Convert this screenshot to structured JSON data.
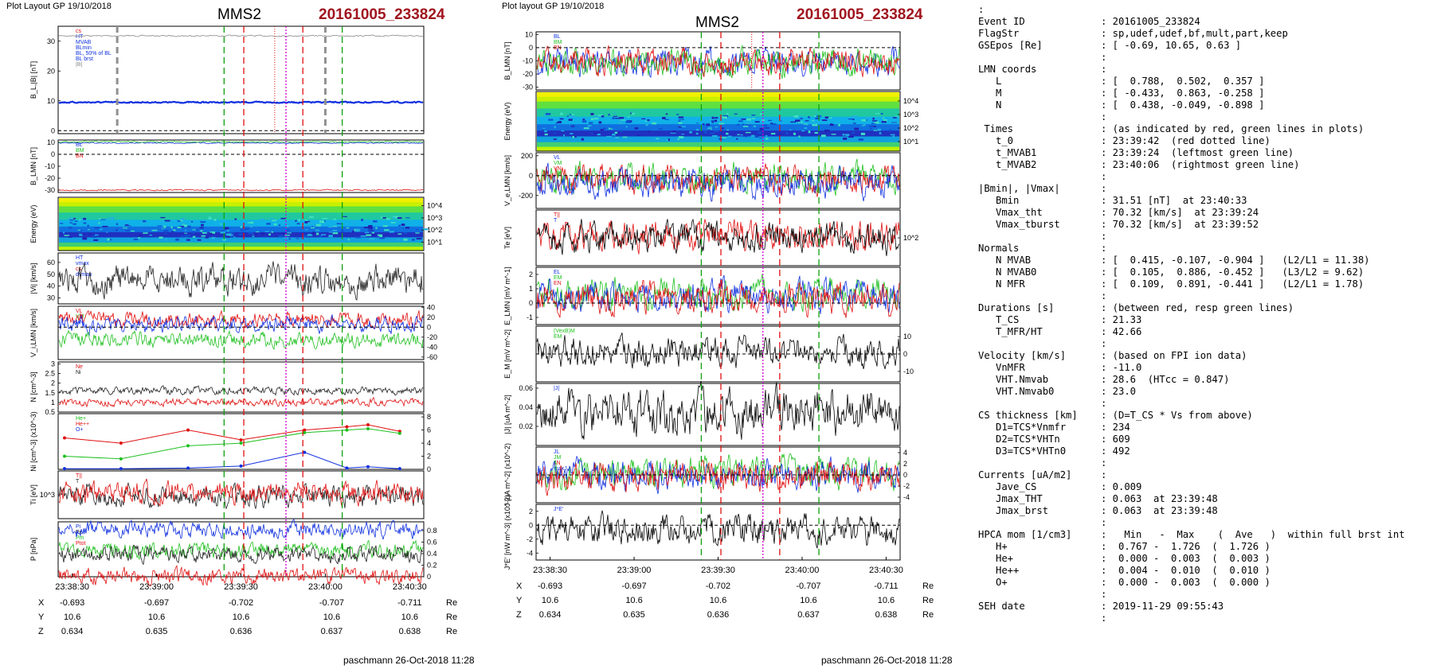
{
  "left": {
    "header": "Plot Layout GP 19/10/2018",
    "title": "MMS2",
    "event": "20161005_233824",
    "footer": "paschmann 26-Oct-2018 11:28",
    "time_ticks": [
      "23:38:30",
      "23:39:00",
      "23:39:30",
      "23:40:00",
      "23:40:30"
    ],
    "pos_rows": [
      {
        "label": "X",
        "vals": [
          "-0.693",
          "-0.697",
          "-0.702",
          "-0.707",
          "-0.711"
        ],
        "unit": "Re"
      },
      {
        "label": "Y",
        "vals": [
          "10.6",
          "10.6",
          "10.6",
          "10.6",
          "10.6"
        ],
        "unit": "Re"
      },
      {
        "label": "Z",
        "vals": [
          "0.634",
          "0.635",
          "0.636",
          "0.637",
          "0.638"
        ],
        "unit": "Re"
      }
    ]
  },
  "mid": {
    "header": "Plot layout GP 19/10/2018",
    "title": "MMS2",
    "event": "20161005_233824",
    "footer": "paschmann 26-Oct-2018 11:28",
    "time_ticks": [
      "23:38:30",
      "23:39:00",
      "23:39:30",
      "23:40:00",
      "23:40:30"
    ],
    "pos_rows": [
      {
        "label": "X",
        "vals": [
          "-0.693",
          "-0.697",
          "-0.702",
          "-0.707",
          "-0.711"
        ],
        "unit": "Re"
      },
      {
        "label": "Y",
        "vals": [
          "10.6",
          "10.6",
          "10.6",
          "10.6",
          "10.6"
        ],
        "unit": "Re"
      },
      {
        "label": "Z",
        "vals": [
          "0.634",
          "0.635",
          "0.636",
          "0.637",
          "0.638"
        ],
        "unit": "Re"
      }
    ]
  },
  "info_lines": [
    [
      ":",
      ""
    ],
    [
      "Event ID",
      ": 20161005_233824"
    ],
    [
      "FlagStr",
      ": sp,udef,udef,bf,mult,part,keep"
    ],
    [
      "GSEpos [Re]",
      ": [ -0.69, 10.65, 0.63 ]"
    ],
    [
      "",
      ":"
    ],
    [
      "LMN coords",
      ":"
    ],
    [
      "   L",
      ": [  0.788,  0.502,  0.357 ]"
    ],
    [
      "   M",
      ": [ -0.433,  0.863, -0.258 ]"
    ],
    [
      "   N",
      ": [  0.438, -0.049, -0.898 ]"
    ],
    [
      "",
      ":"
    ],
    [
      " Times",
      ": (as indicated by red, green lines in plots)"
    ],
    [
      "   t_0",
      ": 23:39:42  (red dotted line)"
    ],
    [
      "   t_MVAB1",
      ": 23:39:24  (leftmost green line)"
    ],
    [
      "   t_MVAB2",
      ": 23:40:06  (rightmost green line)"
    ],
    [
      "",
      ":"
    ],
    [
      "|Bmin|, |Vmax|",
      ":"
    ],
    [
      "   Bmin",
      ": 31.51 [nT]  at 23:40:33"
    ],
    [
      "   Vmax_tht",
      ": 70.32 [km/s]  at 23:39:24"
    ],
    [
      "   Vmax_tburst",
      ": 70.32 [km/s]  at 23:39:52"
    ],
    [
      "",
      ":"
    ],
    [
      "Normals",
      ":"
    ],
    [
      "   N MVAB",
      ": [  0.415, -0.107, -0.904 ]   (L2/L1 = 11.38)"
    ],
    [
      "   N MVAB0",
      ": [  0.105,  0.886, -0.452 ]   (L3/L2 = 9.62)"
    ],
    [
      "   N MFR",
      ": [  0.109,  0.891, -0.441 ]   (L2/L1 = 1.78)"
    ],
    [
      "",
      ":"
    ],
    [
      "Durations [s]",
      ": (between red, resp green lines)"
    ],
    [
      "   T_CS",
      ": 21.33"
    ],
    [
      "   T_MFR/HT",
      ": 42.66"
    ],
    [
      "",
      ":"
    ],
    [
      "Velocity [km/s]",
      ": (based on FPI ion data)"
    ],
    [
      "   VnMFR",
      ": -11.0"
    ],
    [
      "   VHT.Nmvab",
      ": 28.6  (HTcc = 0.847)"
    ],
    [
      "   VHT.Nmvab0",
      ": 23.0"
    ],
    [
      "",
      ":"
    ],
    [
      "CS thickness [km]",
      ": (D=T_CS * Vs from above)"
    ],
    [
      "   D1=TCS*Vnmfr",
      ": 234"
    ],
    [
      "   D2=TCS*VHTn",
      ": 609"
    ],
    [
      "   D3=TCS*VHTn0",
      ": 492"
    ],
    [
      "",
      ":"
    ],
    [
      "Currents [uA/m2]",
      ":"
    ],
    [
      "   Jave_CS",
      ": 0.009"
    ],
    [
      "   Jmax_THT",
      ": 0.063  at 23:39:48"
    ],
    [
      "   Jmax_brst",
      ": 0.063  at 23:39:48"
    ],
    [
      "",
      ":"
    ],
    [
      "HPCA mom [1/cm3]",
      ":   Min   -  Max    (  Ave   )  within full brst int"
    ],
    [
      "   H+",
      ":  0.767 -  1.726  (  1.726 )"
    ],
    [
      "   He+",
      ":  0.000 -  0.003  (  0.003 )"
    ],
    [
      "   He++",
      ":  0.004 -  0.010  (  0.010 )"
    ],
    [
      "   O+",
      ":  0.000 -  0.003  (  0.000 )"
    ],
    [
      "",
      ":"
    ],
    [
      "SEH date",
      ": 2019-11-29 09:55:43"
    ],
    [
      "",
      ":"
    ]
  ],
  "chart_data": [
    {
      "type": "line",
      "page": "left",
      "x_range": [
        "23:38:25",
        "23:40:35"
      ],
      "x_ticks": [
        "23:38:30",
        "23:39:00",
        "23:39:30",
        "23:40:00",
        "23:40:30"
      ],
      "event_lines": {
        "red_dashed": [
          "23:39:31",
          "23:39:52"
        ],
        "red_dotted": "23:39:42",
        "green_dashed": [
          "23:39:24",
          "23:40:06"
        ],
        "magenta_dotted": "23:39:46",
        "gray_dashed": [
          "23:38:46",
          "23:40:00"
        ]
      },
      "panels": [
        {
          "ylabel": "B_L,|B| [nT]",
          "ticks": [
            30,
            20,
            10,
            0
          ],
          "ylim": [
            -1,
            35
          ],
          "legend": [
            "cs",
            "HT",
            "MVAB",
            "BLmin",
            "BL, 50% of BL",
            "BL brst",
            "|B|"
          ],
          "series": [
            {
              "name": "|B|",
              "color": "#888888",
              "approx": 31.8
            },
            {
              "name": "BL",
              "color": "#1030e0",
              "approx": 9.5
            }
          ]
        },
        {
          "ylabel": "B_LMN [nT]",
          "ticks": [
            10,
            0,
            -10,
            -20,
            -30
          ],
          "ylim": [
            -32,
            12
          ],
          "legend": [
            "BL",
            "BM",
            "BN"
          ],
          "series": [
            {
              "name": "BL",
              "color": "#1030e0",
              "approx": 9.5
            },
            {
              "name": "BM",
              "color": "#20c020",
              "approx": 10.5
            },
            {
              "name": "BN",
              "color": "#e01010",
              "approx": -30
            }
          ]
        },
        {
          "ylabel": "Energy (eV)",
          "type": "heatmap",
          "ticks": [
            "10^4",
            "10^3",
            "10^2",
            "10^1"
          ]
        },
        {
          "ylabel": "|Vi| [km/s]",
          "ticks": [
            60,
            50,
            40,
            30
          ],
          "ylim": [
            25,
            68
          ],
          "legend": [
            "HT",
            "vmax",
            "cs",
            "dvmax"
          ],
          "series": [
            {
              "name": "|Vi|",
              "color": "#202020",
              "approx": 45
            }
          ]
        },
        {
          "ylabel": "V_i,LMN [km/s]",
          "ticks": [
            40,
            20,
            0,
            -20,
            -40,
            -60
          ],
          "ylim": [
            -65,
            42
          ],
          "legend": [
            "VL",
            "VM",
            "VN"
          ],
          "series": [
            {
              "name": "VL",
              "color": "#e01010",
              "approx": 15
            },
            {
              "name": "VN",
              "color": "#1030e0",
              "approx": 5
            },
            {
              "name": "VM",
              "color": "#20c020",
              "approx": -25
            }
          ]
        },
        {
          "ylabel": "N [cm^-3]",
          "ticks": [
            3.0,
            2.5,
            2.0,
            1.5,
            1.0,
            0.5
          ],
          "ylim": [
            0.5,
            3.1
          ],
          "legend": [
            "Ne",
            "Ni"
          ],
          "series": [
            {
              "name": "Ni",
              "color": "#202020",
              "approx": 1.6
            },
            {
              "name": "Ne",
              "color": "#e01010",
              "approx": 1.0
            }
          ]
        },
        {
          "ylabel": "Ni [cm^-3] (x10^-3)",
          "ticks": [
            8,
            6,
            4,
            2,
            0
          ],
          "ylim": [
            0,
            8.5
          ],
          "legend": [
            "He+",
            "He++",
            "O+"
          ],
          "series": [
            {
              "name": "He++",
              "color": "#e01010",
              "points": [
                [
                  0,
                  4.8
                ],
                [
                  0.16,
                  4.0
                ],
                [
                  0.35,
                  6.0
                ],
                [
                  0.5,
                  4.5
                ],
                [
                  0.68,
                  6.0
                ],
                [
                  0.8,
                  6.5
                ],
                [
                  0.86,
                  6.8
                ],
                [
                  0.95,
                  5.8
                ]
              ]
            },
            {
              "name": "He+",
              "color": "#20c020",
              "points": [
                [
                  0,
                  2.0
                ],
                [
                  0.16,
                  1.6
                ],
                [
                  0.35,
                  3.6
                ],
                [
                  0.5,
                  4.0
                ],
                [
                  0.68,
                  5.6
                ],
                [
                  0.8,
                  6.0
                ],
                [
                  0.86,
                  6.2
                ],
                [
                  0.95,
                  5.5
                ]
              ]
            },
            {
              "name": "O+",
              "color": "#1030e0",
              "points": [
                [
                  0,
                  0.1
                ],
                [
                  0.16,
                  0.1
                ],
                [
                  0.35,
                  0.2
                ],
                [
                  0.5,
                  0.5
                ],
                [
                  0.68,
                  2.6
                ],
                [
                  0.8,
                  0.2
                ],
                [
                  0.86,
                  0.4
                ],
                [
                  0.95,
                  0.1
                ]
              ]
            }
          ]
        },
        {
          "ylabel": "Ti [eV]",
          "ticks": [
            "10^3"
          ],
          "legend": [
            "T||",
            "T"
          ],
          "series": [
            {
              "name": "T",
              "color": "#202020"
            },
            {
              "name": "T||",
              "color": "#e01010"
            }
          ]
        },
        {
          "ylabel": "P [nPa]",
          "ticks": [
            0.8,
            0.6,
            0.4,
            0.2,
            0.0
          ],
          "ylim": [
            0,
            0.95
          ],
          "legend": [
            "Pi",
            "Pe",
            "Pm",
            "Ptot"
          ],
          "series": [
            {
              "name": "Pi",
              "color": "#1030e0",
              "approx": 0.82
            },
            {
              "name": "Pm",
              "color": "#20c020",
              "approx": 0.45
            },
            {
              "name": "Pe",
              "color": "#202020",
              "approx": 0.38
            },
            {
              "name": "Ptot",
              "color": "#e01010",
              "approx": 0.02
            }
          ]
        }
      ]
    },
    {
      "type": "line",
      "page": "mid",
      "x_range": [
        "23:38:25",
        "23:40:35"
      ],
      "x_ticks": [
        "23:38:30",
        "23:39:00",
        "23:39:30",
        "23:40:00",
        "23:40:30"
      ],
      "event_lines": {
        "red_dashed": [
          "23:39:31",
          "23:39:52"
        ],
        "red_dotted": "23:39:42",
        "green_dashed": [
          "23:39:24",
          "23:40:06"
        ],
        "magenta_dotted": "23:39:46"
      },
      "panels": [
        {
          "ylabel": "B_LMN [nT]",
          "ticks": [
            10,
            0,
            -10,
            -20,
            -30
          ],
          "ylim": [
            -32,
            12
          ],
          "legend": [
            "BL",
            "BM",
            "BN"
          ],
          "series": [
            {
              "name": "BL",
              "color": "#1030e0"
            },
            {
              "name": "BM",
              "color": "#20c020"
            },
            {
              "name": "BN",
              "color": "#e01010"
            }
          ]
        },
        {
          "ylabel": "Energy (eV)",
          "type": "heatmap",
          "ticks": [
            "10^4",
            "10^3",
            "10^2",
            "10^1"
          ]
        },
        {
          "ylabel": "V_e,LMN [km/s]",
          "ticks": [
            200,
            0,
            -200
          ],
          "ylim": [
            -330,
            230
          ],
          "legend": [
            "VL",
            "VM",
            "VN"
          ]
        },
        {
          "ylabel": "Te [eV]",
          "ticks": [
            "10^2"
          ],
          "legend": [
            "T||",
            "T"
          ]
        },
        {
          "ylabel": "E_LMN [mV m^-1]",
          "ticks": [
            2,
            1,
            0,
            -1
          ],
          "ylim": [
            -1.5,
            2.5
          ],
          "legend": [
            "EL",
            "EM",
            "EN"
          ]
        },
        {
          "ylabel": "E_M [mV m^-2]",
          "ticks": [
            10,
            0,
            -10
          ],
          "ylim": [
            -16,
            16
          ],
          "legend": [
            "(VexB)M",
            "EM"
          ]
        },
        {
          "ylabel": "|J| [uA m^-2]",
          "ticks": [
            0.06,
            0.04,
            0.02
          ],
          "ylim": [
            0,
            0.065
          ],
          "legend": [
            "|J|"
          ]
        },
        {
          "ylabel": "J [uA m^-2] (x10^-2)",
          "ticks": [
            4,
            2,
            0,
            -2,
            -4
          ],
          "ylim": [
            -5,
            5
          ],
          "legend": [
            "JL",
            "JM",
            "JN",
            "maxJ"
          ]
        },
        {
          "ylabel": "J*E' [nW m^-3] (x10^-2)",
          "ticks": [
            2,
            0,
            -2,
            -4
          ],
          "ylim": [
            -5,
            3
          ],
          "legend": [
            "J*E'"
          ]
        }
      ]
    }
  ]
}
